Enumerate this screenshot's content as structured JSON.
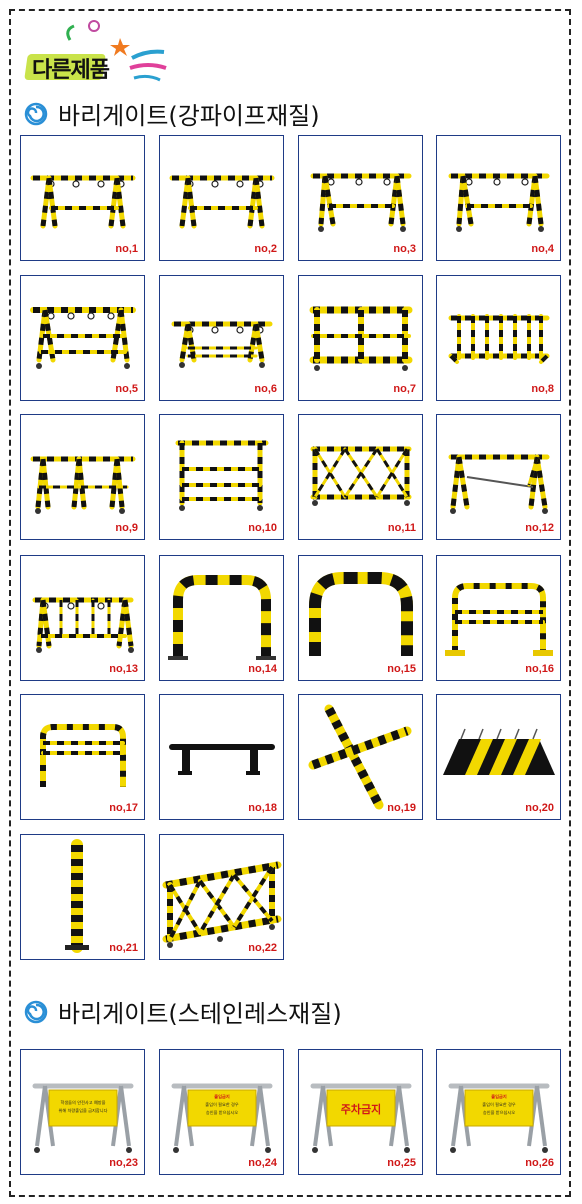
{
  "badge": {
    "text": "다른제품"
  },
  "sections": [
    {
      "title": "바리게이트(강파이프재질)"
    },
    {
      "title": "바리게이트(스테인레스재질)"
    }
  ],
  "colors": {
    "label": "#d01818",
    "border": "#1f3b86",
    "yellow": "#f2d800",
    "black": "#111111"
  },
  "products": [
    {
      "label": "no,1",
      "icon": "a-frame-barricade"
    },
    {
      "label": "no,2",
      "icon": "a-frame-barricade"
    },
    {
      "label": "no,3",
      "icon": "a-frame-barricade-wheels"
    },
    {
      "label": "no,4",
      "icon": "a-frame-barricade-wheels"
    },
    {
      "label": "no,5",
      "icon": "a-frame-barricade-wide"
    },
    {
      "label": "no,6",
      "icon": "a-frame-barricade-low"
    },
    {
      "label": "no,7",
      "icon": "box-frame-barricade"
    },
    {
      "label": "no,8",
      "icon": "picket-barricade"
    },
    {
      "label": "no,9",
      "icon": "triple-a-frame"
    },
    {
      "label": "no,10",
      "icon": "three-rail-barricade"
    },
    {
      "label": "no,11",
      "icon": "x-truss-barricade"
    },
    {
      "label": "no,12",
      "icon": "a-frame-chain"
    },
    {
      "label": "no,13",
      "icon": "picket-barricade-small"
    },
    {
      "label": "no,14",
      "icon": "u-guard"
    },
    {
      "label": "no,15",
      "icon": "u-guard-round"
    },
    {
      "label": "no,16",
      "icon": "u-guard-yellow"
    },
    {
      "label": "no,17",
      "icon": "u-guard-yellow-low"
    },
    {
      "label": "no,18",
      "icon": "bar-stopper"
    },
    {
      "label": "no,19",
      "icon": "cross-barrier"
    },
    {
      "label": "no,20",
      "icon": "spike-strip"
    },
    {
      "label": "no,21",
      "icon": "post-bollard"
    },
    {
      "label": "no,22",
      "icon": "truss-barricade"
    }
  ],
  "stainless": [
    {
      "label": "no,23",
      "sign_lines": [
        "학생들의 안전사고 예방을",
        "위해 차량출입을 금지합니다"
      ]
    },
    {
      "label": "no,24",
      "sign_lines": [
        "출입금지",
        "출입이 필요한 경우",
        "승인을 받으십시오"
      ]
    },
    {
      "label": "no,25",
      "sign_lines": [
        "주차금지"
      ]
    },
    {
      "label": "no,26",
      "sign_lines": [
        "출입금지",
        "출입이 필요한 경우",
        "승인을 받으십시오"
      ]
    }
  ]
}
